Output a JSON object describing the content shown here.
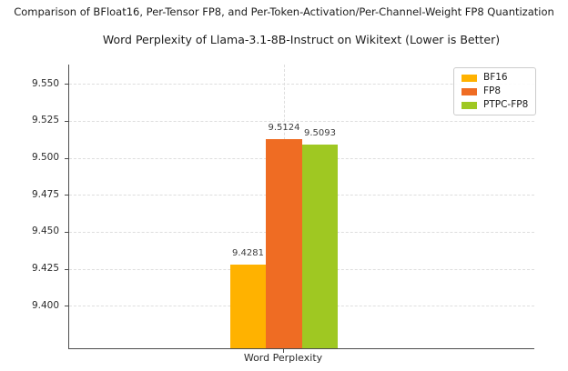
{
  "chart_data": {
    "type": "bar",
    "suptitle": "Comparison of BFloat16, Per-Tensor FP8, and Per-Token-Activation/Per-Channel-Weight FP8 Quantization",
    "title": "Word Perplexity of Llama-3.1-8B-Instruct on Wikitext (Lower is Better)",
    "categories": [
      "Word Perplexity"
    ],
    "series": [
      {
        "name": "BF16",
        "values": [
          9.4281
        ],
        "value_label": "9.4281",
        "color": "#ffb200"
      },
      {
        "name": "FP8",
        "values": [
          9.5124
        ],
        "value_label": "9.5124",
        "color": "#ef6c23"
      },
      {
        "name": "PTPC-FP8",
        "values": [
          9.5093
        ],
        "value_label": "9.5093",
        "color": "#9fc822"
      }
    ],
    "xlabel": "",
    "ylabel": "",
    "ylim": [
      9.3712,
      9.5631
    ],
    "yticks": [
      {
        "value": 9.4,
        "label": "9.400"
      },
      {
        "value": 9.425,
        "label": "9.425"
      },
      {
        "value": 9.45,
        "label": "9.450"
      },
      {
        "value": 9.475,
        "label": "9.475"
      },
      {
        "value": 9.5,
        "label": "9.500"
      },
      {
        "value": 9.525,
        "label": "9.525"
      },
      {
        "value": 9.55,
        "label": "9.550"
      }
    ],
    "grid": true,
    "grid_style": "dashed",
    "legend_position": "upper right"
  }
}
